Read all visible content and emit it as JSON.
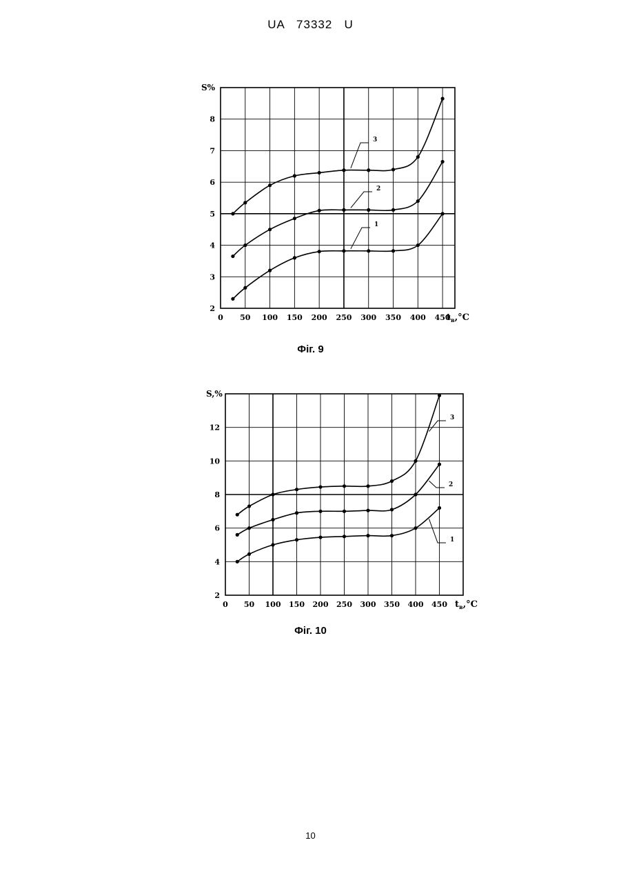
{
  "header": {
    "text": "UA   73332   U"
  },
  "page_number": "10",
  "chart_data": [
    {
      "type": "line",
      "caption": "Фіг. 9",
      "ylabel": "S%",
      "xlabel": "t",
      "xlabel_sub": "в",
      "xlabel_unit": ",°C",
      "x_ticks": [
        "0",
        "50",
        "100",
        "150",
        "200",
        "250",
        "300",
        "350",
        "400",
        "450"
      ],
      "y_ticks": [
        "2",
        "3",
        "4",
        "5",
        "6",
        "7",
        "8"
      ],
      "xlim": [
        0,
        475
      ],
      "ylim": [
        2,
        9
      ],
      "grid": true,
      "x": [
        25,
        50,
        100,
        150,
        200,
        250,
        300,
        350,
        400,
        450
      ],
      "series": [
        {
          "name": "1",
          "values": [
            2.3,
            2.65,
            3.2,
            3.6,
            3.8,
            3.82,
            3.82,
            3.82,
            4.0,
            5.0
          ]
        },
        {
          "name": "2",
          "values": [
            3.65,
            4.0,
            4.5,
            4.85,
            5.1,
            5.12,
            5.12,
            5.12,
            5.4,
            6.65
          ]
        },
        {
          "name": "3",
          "values": [
            5.0,
            5.35,
            5.9,
            6.2,
            6.3,
            6.38,
            6.38,
            6.4,
            6.8,
            8.65
          ]
        }
      ]
    },
    {
      "type": "line",
      "caption": "Фіг. 10",
      "ylabel": "S,%",
      "xlabel": "t",
      "xlabel_sub": "в",
      "xlabel_unit": ",°C",
      "x_ticks": [
        "0",
        "50",
        "100",
        "150",
        "200",
        "250",
        "300",
        "350",
        "400",
        "450"
      ],
      "y_ticks": [
        "2",
        "4",
        "6",
        "8",
        "10",
        "12"
      ],
      "xlim": [
        0,
        500
      ],
      "ylim": [
        2,
        14
      ],
      "grid": true,
      "x": [
        25,
        50,
        100,
        150,
        200,
        250,
        300,
        350,
        400,
        450
      ],
      "series": [
        {
          "name": "1",
          "values": [
            4.0,
            4.45,
            5.0,
            5.3,
            5.45,
            5.5,
            5.55,
            5.55,
            6.0,
            7.2
          ]
        },
        {
          "name": "2",
          "values": [
            5.6,
            6.0,
            6.5,
            6.9,
            7.0,
            7.0,
            7.05,
            7.1,
            8.0,
            9.8
          ]
        },
        {
          "name": "3",
          "values": [
            6.8,
            7.3,
            8.0,
            8.3,
            8.45,
            8.5,
            8.5,
            8.8,
            10.0,
            13.9
          ]
        }
      ]
    }
  ]
}
